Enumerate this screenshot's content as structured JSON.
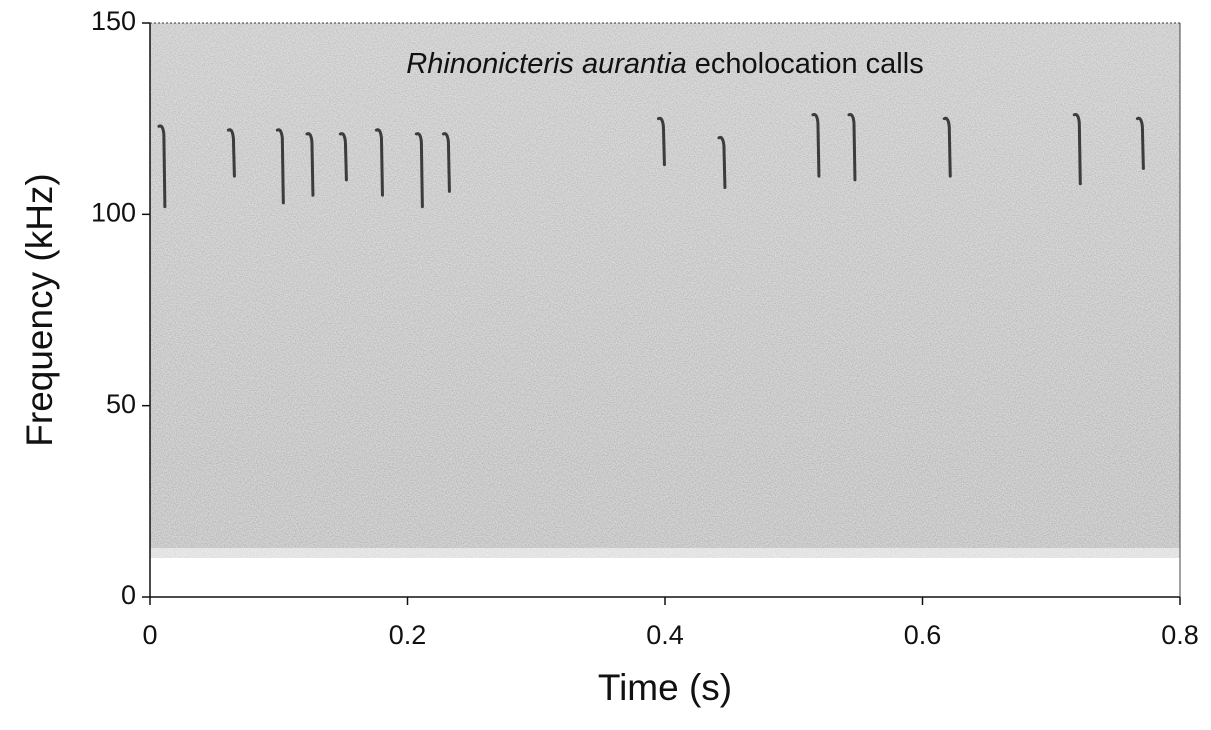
{
  "chart_data": {
    "type": "spectrogram",
    "title": {
      "italic": "Rhinonicteris aurantia",
      "text": "echolocation calls"
    },
    "x_label": "Time (s)",
    "y_label": "Frequency (kHz)",
    "xlim": [
      0,
      0.8
    ],
    "ylim": [
      0,
      150
    ],
    "xticks": [
      0,
      0.2,
      0.4,
      0.6,
      0.8
    ],
    "yticks": [
      0,
      50,
      100,
      150
    ],
    "color": "#222222",
    "calls": {
      "time": [
        0.01,
        0.064,
        0.102,
        0.125,
        0.151,
        0.179,
        0.21,
        0.231,
        0.398,
        0.445,
        0.518,
        0.546,
        0.62,
        0.721,
        0.77
      ],
      "high": [
        123,
        122,
        122,
        121,
        121,
        122,
        121,
        121,
        125,
        120,
        126,
        126,
        125,
        126,
        125
      ],
      "low": [
        102,
        110,
        103,
        105,
        109,
        105,
        102,
        106,
        113,
        107,
        110,
        109,
        110,
        108,
        112
      ]
    }
  }
}
